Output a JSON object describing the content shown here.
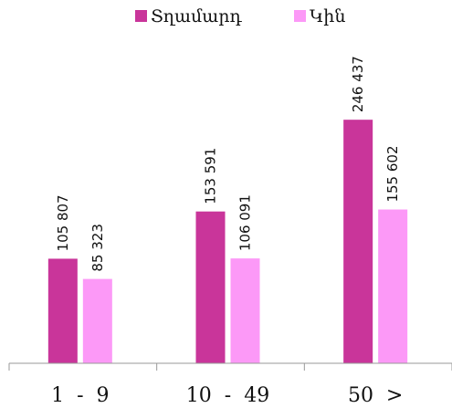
{
  "chart_data": {
    "type": "bar",
    "categories": [
      "1  -  9",
      "10  -  49",
      "50  >"
    ],
    "series": [
      {
        "name": "Տղամարդ",
        "color": "#c9359a",
        "values": [
          105807,
          153591,
          246437
        ],
        "labels": [
          "105 807",
          "153 591",
          "246 437"
        ]
      },
      {
        "name": "Կին",
        "color": "#fc99f7",
        "values": [
          85323,
          106091,
          155602
        ],
        "labels": [
          "85 323",
          "106 091",
          "155 602"
        ]
      }
    ],
    "title": "",
    "xlabel": "",
    "ylabel": "",
    "ylim": [
      0,
      300000
    ],
    "grid": false,
    "legend": "top-center",
    "axis_color": "#999999"
  }
}
